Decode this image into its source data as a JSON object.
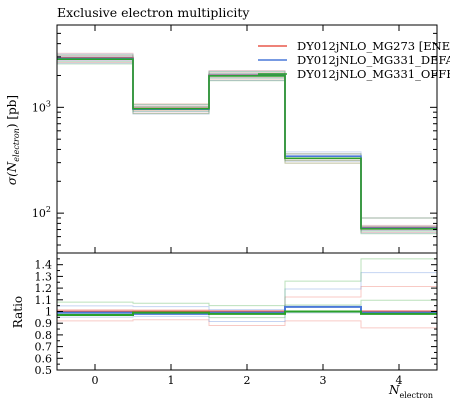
{
  "chart_data": {
    "type": "line",
    "title": "Exclusive electron multiplicity",
    "xlabel": "N",
    "xlabel_sub": "electron",
    "ylabel": "σ(N",
    "ylabel_sub": "electron",
    "ylabel_suffix": ") [pb]",
    "ratio_label": "Ratio",
    "x": [
      0,
      1,
      2,
      3,
      4
    ],
    "x_ticks": [
      "0",
      "1",
      "2",
      "3",
      "4"
    ],
    "xlim": [
      -0.5,
      4.5
    ],
    "yscale": "log",
    "ylim": [
      42,
      6000
    ],
    "y_ticks": [
      {
        "value": 100,
        "base": "10",
        "exp": "2"
      },
      {
        "value": 1000,
        "base": "10",
        "exp": "3"
      }
    ],
    "ratio_ylim": [
      0.5,
      1.5
    ],
    "ratio_ticks": [
      "0.5",
      "0.6",
      "0.7",
      "0.8",
      "0.9",
      "1",
      "1.1",
      "1.2",
      "1.3",
      "1.4"
    ],
    "series": [
      {
        "name": "DY012jNLO_MG273 [ENE",
        "color": "#e8594c",
        "values": [
          2950,
          980,
          2020,
          330,
          73
        ]
      },
      {
        "name": "DY012jNLO_MG331_DEFA",
        "color": "#4a78d8",
        "values": [
          2900,
          960,
          2000,
          345,
          72
        ]
      },
      {
        "name": "DY012jNLO_MG331_OFFF",
        "color": "#2aa02a",
        "values": [
          2850,
          970,
          1980,
          330,
          71
        ]
      }
    ],
    "ratios": [
      {
        "series": "DY012jNLO_MG273 [ENE",
        "values": [
          1.0,
          1.0,
          1.0,
          1.0,
          1.0
        ]
      },
      {
        "series": "DY012jNLO_MG331_DEFA",
        "values": [
          0.99,
          0.98,
          0.99,
          1.04,
          0.99
        ]
      },
      {
        "series": "DY012jNLO_MG331_OFFF",
        "values": [
          0.97,
          0.99,
          0.98,
          1.0,
          0.98
        ]
      }
    ],
    "variation_bands": {
      "main_low_factor": 0.9,
      "main_high_factor": 1.1,
      "last_bin_high": 120,
      "ratio_low": [
        0.92,
        0.93,
        0.88,
        0.92,
        0.86
      ],
      "ratio_high": [
        1.08,
        1.07,
        1.05,
        1.26,
        1.45
      ]
    }
  }
}
